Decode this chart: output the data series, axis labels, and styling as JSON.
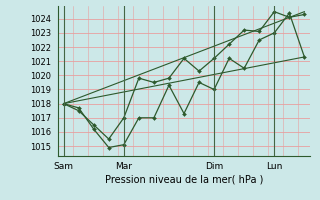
{
  "background_color": "#cce8e8",
  "grid_color_h": "#e8a0a0",
  "grid_color_v": "#e8a0a0",
  "line_color": "#2d5a2d",
  "marker_color": "#2d5a2d",
  "ylabel_ticks": [
    1015,
    1016,
    1017,
    1018,
    1019,
    1020,
    1021,
    1022,
    1023,
    1024
  ],
  "ylim": [
    1014.3,
    1024.9
  ],
  "xlabel": "Pression niveau de la mer( hPa )",
  "xtick_labels": [
    "Sam",
    "Mar",
    "Dim",
    "Lun"
  ],
  "xtick_positions": [
    0,
    2,
    5,
    7
  ],
  "vline_positions": [
    0,
    2,
    5,
    7
  ],
  "xlim": [
    -0.2,
    8.2
  ],
  "line1_x": [
    0,
    0.5,
    1.0,
    1.5,
    2.0,
    2.5,
    3.0,
    3.5,
    4.0,
    4.5,
    5.0,
    5.5,
    6.0,
    6.5,
    7.0,
    7.5,
    8.0
  ],
  "line1_y": [
    1018.0,
    1017.7,
    1016.2,
    1014.9,
    1015.1,
    1017.0,
    1017.0,
    1019.3,
    1017.3,
    1019.5,
    1019.0,
    1021.2,
    1020.5,
    1022.5,
    1023.0,
    1024.4,
    1021.3
  ],
  "line2_x": [
    0,
    0.5,
    1.0,
    1.5,
    2.0,
    2.5,
    3.0,
    3.5,
    4.0,
    4.5,
    5.0,
    5.5,
    6.0,
    6.5,
    7.0,
    7.5,
    8.0
  ],
  "line2_y": [
    1018.0,
    1017.5,
    1016.5,
    1015.5,
    1017.0,
    1019.8,
    1019.5,
    1019.8,
    1021.2,
    1020.3,
    1021.2,
    1022.2,
    1023.2,
    1023.1,
    1024.5,
    1024.1,
    1024.3
  ],
  "trend_x": [
    0,
    8.0
  ],
  "trend_y": [
    1018.0,
    1021.3
  ],
  "trend2_x": [
    0,
    8.0
  ],
  "trend2_y": [
    1018.0,
    1024.5
  ]
}
